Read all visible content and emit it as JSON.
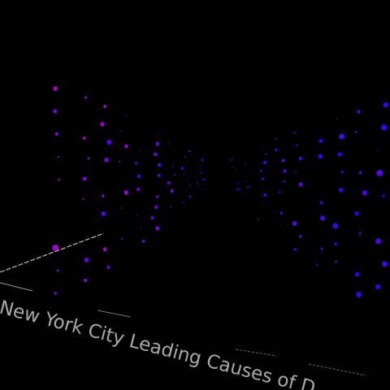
{
  "title": "New York City Leading Causes of D"
}
